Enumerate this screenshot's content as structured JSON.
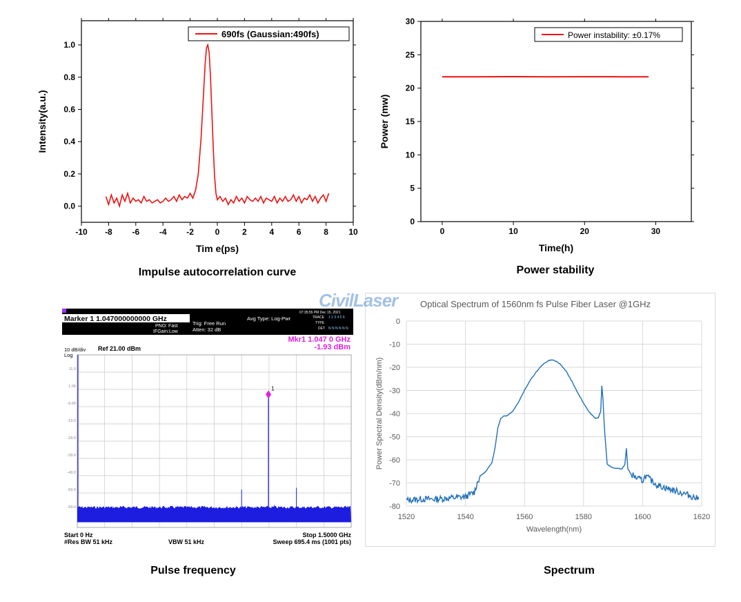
{
  "captions": {
    "autocorrelation": "Impulse autocorrelation curve",
    "power": "Power stability",
    "pulse_freq": "Pulse frequency",
    "spectrum": "Spectrum"
  },
  "watermark": "CivilLaser",
  "sa": {
    "marker_line": "Marker 1  1.047000000000 GHz",
    "pno": "PNO: Fast",
    "ifgain": "IFGain:Low",
    "trig": "Trig: Free Run",
    "atten": "Atten: 32 dB",
    "avg_type": "Avg Type: Log-Pwr",
    "mkr_freq": "Mkr1 1.047 0 GHz",
    "mkr_level": "-1.93 dBm",
    "scale": "10 dB/div",
    "log": "Log",
    "ref": "Ref 21.00 dBm",
    "start": "Start 0 Hz",
    "stop": "Stop 1.5000 GHz",
    "res_bw": "#Res BW 51 kHz",
    "vbw": "VBW 51 kHz",
    "sweep": "Sweep  695.4 ms (1001 pts)",
    "marker_num": "1",
    "trace_label": "TRACE",
    "type_label": "TYPE",
    "det_label": "DET",
    "trace_vals": "1 2 3 4 5 6",
    "det_vals": "N N N N N N",
    "timestamp": "07:35:55 PM Dec 15, 2021",
    "tick_labels": [
      "11.0",
      "1.00",
      "-9.00",
      "-19.0",
      "-29.0",
      "-39.0",
      "-49.0",
      "-59.0",
      "-69.0"
    ],
    "marker_freq_ghz": 1.047,
    "marker_level_dbm": -1.93,
    "noise_floor_dbm": -70,
    "colors": {
      "header": "#000000",
      "trace": "#1d1de0",
      "marker": "#e020e0",
      "grid": "#c8c8c8"
    }
  },
  "chart_data": [
    {
      "id": "autocorrelation",
      "type": "line",
      "title": "",
      "xlabel": "Tim e(ps)",
      "ylabel": "Intensity(a.u.)",
      "xlim": [
        -10,
        10
      ],
      "ylim": [
        -0.1,
        1.15
      ],
      "xticks": [
        -10,
        -8,
        -6,
        -4,
        -2,
        0,
        2,
        4,
        6,
        8,
        10
      ],
      "xtick_labels": [
        "-10",
        "-8",
        "-6",
        "-4",
        "-2",
        "0",
        "2",
        "4",
        "6",
        "8",
        "10"
      ],
      "yticks": [
        0.0,
        0.2,
        0.4,
        0.6,
        0.8,
        1.0
      ],
      "ytick_labels": [
        "0.0",
        "0.2",
        "0.4",
        "0.6",
        "0.8",
        "1.0"
      ],
      "legend": "690fs (Gaussian:490fs)",
      "legend_position": "top-right",
      "color": "#ee1111",
      "series": [
        {
          "name": "690fs (Gaussian:490fs)",
          "x": [
            -8.2,
            -8.0,
            -7.8,
            -7.6,
            -7.4,
            -7.2,
            -7.0,
            -6.8,
            -6.6,
            -6.4,
            -6.2,
            -6.0,
            -5.8,
            -5.6,
            -5.4,
            -5.2,
            -5.0,
            -4.8,
            -4.6,
            -4.4,
            -4.2,
            -4.0,
            -3.8,
            -3.6,
            -3.4,
            -3.2,
            -3.0,
            -2.8,
            -2.6,
            -2.4,
            -2.2,
            -2.0,
            -1.8,
            -1.6,
            -1.4,
            -1.2,
            -1.0,
            -0.9,
            -0.8,
            -0.7,
            -0.6,
            -0.5,
            -0.4,
            -0.3,
            -0.2,
            -0.1,
            0.0,
            0.2,
            0.4,
            0.6,
            0.8,
            1.0,
            1.2,
            1.4,
            1.6,
            1.8,
            2.0,
            2.2,
            2.4,
            2.6,
            2.8,
            3.0,
            3.2,
            3.4,
            3.6,
            3.8,
            4.0,
            4.2,
            4.4,
            4.6,
            4.8,
            5.0,
            5.2,
            5.4,
            5.6,
            5.8,
            6.0,
            6.2,
            6.4,
            6.6,
            6.8,
            7.0,
            7.2,
            7.4,
            7.6,
            7.8,
            8.0,
            8.2
          ],
          "y": [
            0.06,
            0.01,
            0.07,
            0.02,
            0.05,
            0.0,
            0.07,
            0.03,
            0.08,
            0.02,
            0.05,
            0.03,
            0.04,
            0.02,
            0.06,
            0.03,
            0.04,
            0.02,
            0.03,
            0.04,
            0.02,
            0.03,
            0.05,
            0.03,
            0.04,
            0.06,
            0.03,
            0.07,
            0.04,
            0.06,
            0.05,
            0.08,
            0.05,
            0.1,
            0.2,
            0.42,
            0.72,
            0.88,
            0.98,
            1.0,
            0.95,
            0.8,
            0.58,
            0.36,
            0.18,
            0.08,
            0.04,
            0.06,
            0.03,
            0.05,
            0.01,
            0.04,
            0.02,
            0.06,
            0.03,
            0.05,
            0.02,
            0.06,
            0.04,
            0.03,
            0.05,
            0.03,
            0.06,
            0.02,
            0.05,
            0.04,
            0.03,
            0.06,
            0.02,
            0.05,
            0.03,
            0.06,
            0.03,
            0.04,
            0.07,
            0.03,
            0.06,
            0.02,
            0.05,
            0.04,
            0.07,
            0.03,
            0.06,
            0.02,
            0.05,
            0.07,
            0.03,
            0.08
          ]
        }
      ]
    },
    {
      "id": "power",
      "type": "line",
      "title": "",
      "xlabel": "Time(h)",
      "ylabel": "Power (mw)",
      "xlim": [
        -3,
        35
      ],
      "ylim": [
        0,
        30
      ],
      "xticks": [
        0,
        10,
        20,
        30
      ],
      "xtick_labels": [
        "0",
        "10",
        "20",
        "30"
      ],
      "yticks": [
        0,
        5,
        10,
        15,
        20,
        25,
        30
      ],
      "ytick_labels": [
        "0",
        "5",
        "10",
        "15",
        "20",
        "25",
        "30"
      ],
      "legend": "Power instability: ±0.17%",
      "legend_position": "top-right",
      "color": "#ee1111",
      "series": [
        {
          "name": "Power instability: ±0.17%",
          "x": [
            0,
            5,
            10,
            15,
            20,
            25,
            29
          ],
          "y": [
            21.7,
            21.7,
            21.72,
            21.7,
            21.71,
            21.7,
            21.7
          ]
        }
      ]
    },
    {
      "id": "spectrum",
      "type": "line",
      "title": "Optical Spectrum of 1560nm fs Pulse Fiber Laser @1GHz",
      "xlabel": "Wavelength(nm)",
      "ylabel": "Power Spectral Density(dBm/nm)",
      "xlim": [
        1520,
        1620
      ],
      "ylim": [
        -80,
        0
      ],
      "xticks": [
        1520,
        1540,
        1560,
        1580,
        1600,
        1620
      ],
      "xtick_labels": [
        "1520",
        "1540",
        "1560",
        "1580",
        "1600",
        "1620"
      ],
      "yticks": [
        0,
        -10,
        -20,
        -30,
        -40,
        -50,
        -60,
        -70,
        -80
      ],
      "ytick_labels": [
        "0",
        "-10",
        "-20",
        "-30",
        "-40",
        "-50",
        "-60",
        "-70",
        "-80"
      ],
      "grid": true,
      "color": "#1f6fb8",
      "series": [
        {
          "name": "",
          "x": [
            1520,
            1525,
            1530,
            1535,
            1540,
            1543,
            1544,
            1545,
            1547,
            1549,
            1550,
            1551,
            1552,
            1553,
            1554,
            1556,
            1558,
            1560,
            1562,
            1564,
            1566,
            1568,
            1569,
            1570,
            1572,
            1574,
            1576,
            1578,
            1580,
            1582,
            1584,
            1585,
            1585.8,
            1586.2,
            1586.6,
            1587,
            1588,
            1590,
            1592,
            1593,
            1594,
            1594.5,
            1595,
            1596,
            1598,
            1600,
            1601,
            1605,
            1610,
            1615,
            1619
          ],
          "y": [
            -77.5,
            -77,
            -77,
            -76.5,
            -76,
            -74,
            -70,
            -67,
            -65,
            -61,
            -55,
            -46,
            -42,
            -41,
            -41,
            -39,
            -35,
            -30,
            -25.5,
            -22,
            -19,
            -17.2,
            -16.8,
            -17,
            -18.5,
            -21.5,
            -26,
            -31,
            -35.5,
            -39.5,
            -42,
            -42,
            -39,
            -28,
            -34,
            -45,
            -62,
            -63.5,
            -63.8,
            -64,
            -62,
            -55,
            -64,
            -66,
            -68,
            -69,
            -67,
            -71,
            -73,
            -75,
            -77
          ]
        }
      ]
    }
  ]
}
